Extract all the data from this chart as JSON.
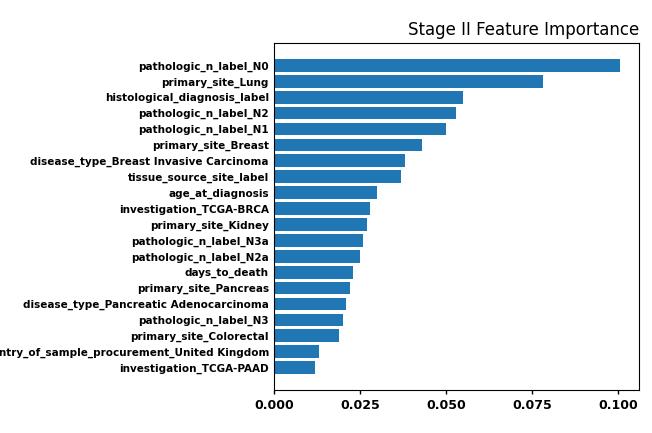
{
  "title": "Stage II Feature Importance",
  "categories": [
    "pathologic_n_label_N0",
    "primary_site_Lung",
    "histological_diagnosis_label",
    "pathologic_n_label_N2",
    "pathologic_n_label_N1",
    "primary_site_Breast",
    "disease_type_Breast Invasive Carcinoma",
    "tissue_source_site_label",
    "age_at_diagnosis",
    "investigation_TCGA-BRCA",
    "primary_site_Kidney",
    "pathologic_n_label_N3a",
    "pathologic_n_label_N2a",
    "days_to_death",
    "primary_site_Pancreas",
    "disease_type_Pancreatic Adenocarcinoma",
    "pathologic_n_label_N3",
    "primary_site_Colorectal",
    "country_of_sample_procurement_United Kingdom",
    "investigation_TCGA-PAAD"
  ],
  "values": [
    0.1005,
    0.078,
    0.055,
    0.053,
    0.05,
    0.043,
    0.038,
    0.037,
    0.03,
    0.028,
    0.027,
    0.026,
    0.025,
    0.023,
    0.022,
    0.021,
    0.02,
    0.019,
    0.013,
    0.012
  ],
  "bar_color": "#2077b4",
  "xlim": [
    0,
    0.106
  ],
  "xticks": [
    0.0,
    0.025,
    0.05,
    0.075,
    0.1
  ],
  "title_fontsize": 12,
  "label_fontsize": 7.5,
  "tick_fontsize": 9,
  "background_color": "#ffffff"
}
